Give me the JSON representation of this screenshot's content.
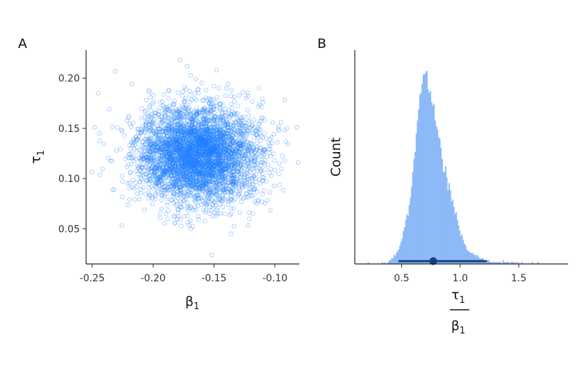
{
  "colors": {
    "points": "#1E7FFF",
    "hist": "#8DB9F8",
    "interval": "#153E7A"
  },
  "chart_data": [
    {
      "type": "scatter",
      "panel_label": "A",
      "xlabel": "β",
      "xlabel_sub": "1",
      "ylabel": "τ",
      "ylabel_sub": "1",
      "xlim": [
        -0.255,
        -0.08
      ],
      "ylim": [
        0.015,
        0.228
      ],
      "xticks": [
        -0.25,
        -0.2,
        -0.15,
        -0.1
      ],
      "xtick_labels": [
        "-0.25",
        "-0.20",
        "-0.15",
        "-0.10"
      ],
      "yticks": [
        0.05,
        0.1,
        0.15,
        0.2
      ],
      "ytick_labels": [
        "0.05",
        "0.10",
        "0.15",
        "0.20"
      ],
      "cloud": {
        "center": [
          -0.163,
          0.124
        ],
        "sd": [
          0.024,
          0.024
        ],
        "n": 4000
      },
      "points": [
        [
          -0.248,
          0.151
        ],
        [
          -0.245,
          0.185
        ],
        [
          -0.244,
          0.145
        ],
        [
          -0.236,
          0.169
        ],
        [
          -0.231,
          0.207
        ],
        [
          -0.232,
          0.089
        ],
        [
          -0.178,
          0.218
        ],
        [
          -0.172,
          0.212
        ],
        [
          -0.148,
          0.208
        ],
        [
          -0.165,
          0.199
        ],
        [
          -0.113,
          0.19
        ],
        [
          -0.097,
          0.152
        ],
        [
          -0.095,
          0.156
        ],
        [
          -0.092,
          0.148
        ],
        [
          -0.082,
          0.151
        ],
        [
          -0.081,
          0.116
        ],
        [
          -0.105,
          0.135
        ],
        [
          -0.118,
          0.065
        ],
        [
          -0.136,
          0.045
        ],
        [
          -0.152,
          0.024
        ],
        [
          -0.177,
          0.053
        ],
        [
          -0.213,
          0.085
        ],
        [
          -0.225,
          0.097
        ],
        [
          -0.188,
          0.06
        ],
        [
          -0.121,
          0.06
        ],
        [
          -0.109,
          0.088
        ],
        [
          -0.193,
          0.07
        ],
        [
          -0.214,
          0.142
        ]
      ]
    },
    {
      "type": "histogram",
      "panel_label": "B",
      "ylabel": "Count",
      "xlabel_numerator": "τ",
      "xlabel_numerator_sub": "1",
      "xlabel_denominator": "β",
      "xlabel_denominator_sub": "1",
      "xlim": [
        0.1,
        1.92
      ],
      "xticks": [
        0.5,
        1.0,
        1.5
      ],
      "xtick_labels": [
        "0.5",
        "1.0",
        "1.5"
      ],
      "bin_start": 0.1,
      "bin_width": 0.01,
      "count_max": 105,
      "counts": [
        0,
        0,
        0,
        0,
        0,
        0,
        0,
        0,
        0,
        0,
        0,
        1,
        0,
        0,
        0,
        0,
        0,
        0,
        0,
        0,
        0,
        0,
        0,
        1,
        0,
        1,
        0,
        0,
        1,
        2,
        2,
        3,
        3,
        5,
        4,
        6,
        7,
        8,
        10,
        12,
        14,
        18,
        20,
        24,
        27,
        26,
        32,
        36,
        42,
        50,
        57,
        61,
        71,
        78,
        84,
        92,
        93,
        98,
        103,
        103,
        104,
        105,
        95,
        93,
        94,
        88,
        86,
        87,
        78,
        75,
        73,
        69,
        68,
        63,
        57,
        50,
        50,
        53,
        47,
        40,
        44,
        40,
        34,
        35,
        31,
        27,
        28,
        24,
        21,
        18,
        15,
        16,
        13,
        11,
        10,
        8,
        7,
        7,
        6,
        6,
        6,
        5,
        5,
        4,
        5,
        4,
        3,
        3,
        3,
        3,
        2,
        2,
        2,
        2,
        2,
        1,
        1,
        1,
        1,
        1,
        1,
        1,
        1,
        1,
        1,
        0,
        2,
        1,
        1,
        1,
        1,
        1,
        0,
        1,
        1,
        1,
        0,
        1,
        0,
        1,
        0,
        0,
        1,
        0,
        0,
        0,
        0,
        0,
        0,
        0,
        0,
        1,
        0,
        0,
        0,
        0,
        1,
        0,
        0,
        0,
        0,
        0,
        0,
        0,
        0,
        0,
        0,
        0,
        0,
        0,
        0,
        0,
        0,
        0,
        0,
        0,
        0,
        0,
        0,
        0,
        0,
        0
      ],
      "point_estimate": 0.77,
      "interval": [
        0.48,
        1.22
      ]
    }
  ]
}
